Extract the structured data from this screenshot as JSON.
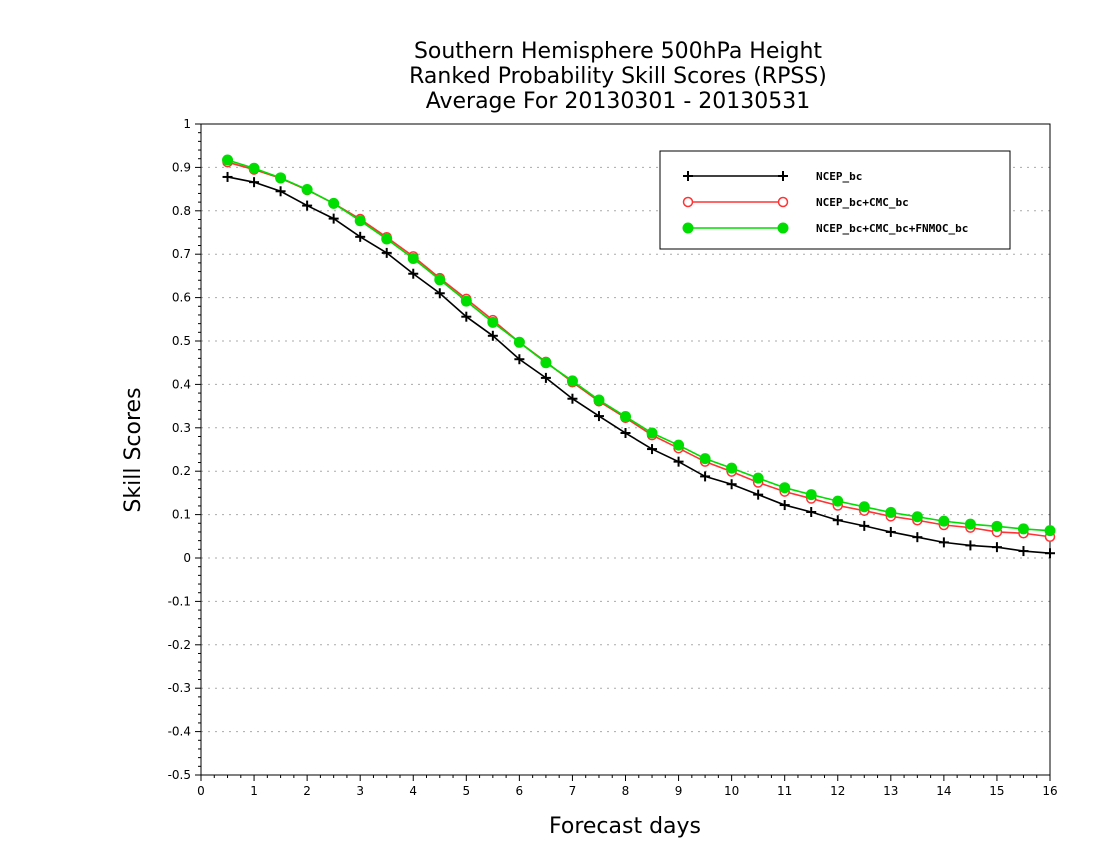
{
  "chart_data": {
    "type": "line",
    "title_lines": [
      "Southern Hemisphere 500hPa Height",
      "Ranked Probability Skill Scores (RPSS)",
      "Average For 20130301 - 20130531"
    ],
    "xlabel": "Forecast days",
    "ylabel": "Skill Scores",
    "xlim": [
      0,
      16
    ],
    "ylim": [
      -0.5,
      1
    ],
    "xticks": [
      0,
      1,
      2,
      3,
      4,
      5,
      6,
      7,
      8,
      9,
      10,
      11,
      12,
      13,
      14,
      15,
      16
    ],
    "yticks": [
      -0.5,
      -0.4,
      -0.3,
      -0.2,
      -0.1,
      0,
      0.1,
      0.2,
      0.3,
      0.4,
      0.5,
      0.6,
      0.7,
      0.8,
      0.9,
      1
    ],
    "ytick_labels": [
      "-0.5",
      "-0.4",
      "-0.3",
      "-0.2",
      "-0.1",
      "0",
      "0.1",
      "0.2",
      "0.3",
      "0.4",
      "0.5",
      "0.6",
      "0.7",
      "0.8",
      "0.9",
      "1"
    ],
    "grid": "horizontal dotted",
    "legend_position": "top-right",
    "x": [
      0.5,
      1,
      1.5,
      2,
      2.5,
      3,
      3.5,
      4,
      4.5,
      5,
      5.5,
      6,
      6.5,
      7,
      7.5,
      8,
      8.5,
      9,
      9.5,
      10,
      10.5,
      11,
      11.5,
      12,
      12.5,
      13,
      13.5,
      14,
      14.5,
      15,
      15.5,
      16
    ],
    "series": [
      {
        "name": "NCEP_bc",
        "color": "#000000",
        "marker": "plus",
        "values": [
          0.878,
          0.866,
          0.845,
          0.812,
          0.782,
          0.74,
          0.703,
          0.655,
          0.61,
          0.556,
          0.512,
          0.458,
          0.415,
          0.367,
          0.327,
          0.288,
          0.251,
          0.222,
          0.188,
          0.17,
          0.146,
          0.122,
          0.106,
          0.087,
          0.074,
          0.06,
          0.048,
          0.036,
          0.029,
          0.025,
          0.016,
          0.011
        ]
      },
      {
        "name": "NCEP_bc+CMC_bc",
        "color": "#ff3333",
        "marker": "open-circle",
        "values": [
          0.912,
          0.895,
          0.875,
          0.848,
          0.817,
          0.781,
          0.739,
          0.695,
          0.645,
          0.597,
          0.548,
          0.497,
          0.452,
          0.405,
          0.361,
          0.323,
          0.283,
          0.253,
          0.222,
          0.199,
          0.174,
          0.153,
          0.137,
          0.121,
          0.109,
          0.096,
          0.087,
          0.076,
          0.07,
          0.06,
          0.057,
          0.049
        ]
      },
      {
        "name": "NCEP_bc+CMC_bc+FNMOC_bc",
        "color": "#00dd00",
        "marker": "filled-circle",
        "values": [
          0.917,
          0.898,
          0.876,
          0.849,
          0.817,
          0.777,
          0.735,
          0.69,
          0.641,
          0.592,
          0.543,
          0.497,
          0.45,
          0.408,
          0.364,
          0.326,
          0.288,
          0.26,
          0.229,
          0.207,
          0.184,
          0.162,
          0.146,
          0.131,
          0.118,
          0.105,
          0.095,
          0.085,
          0.078,
          0.073,
          0.067,
          0.063
        ]
      }
    ]
  }
}
